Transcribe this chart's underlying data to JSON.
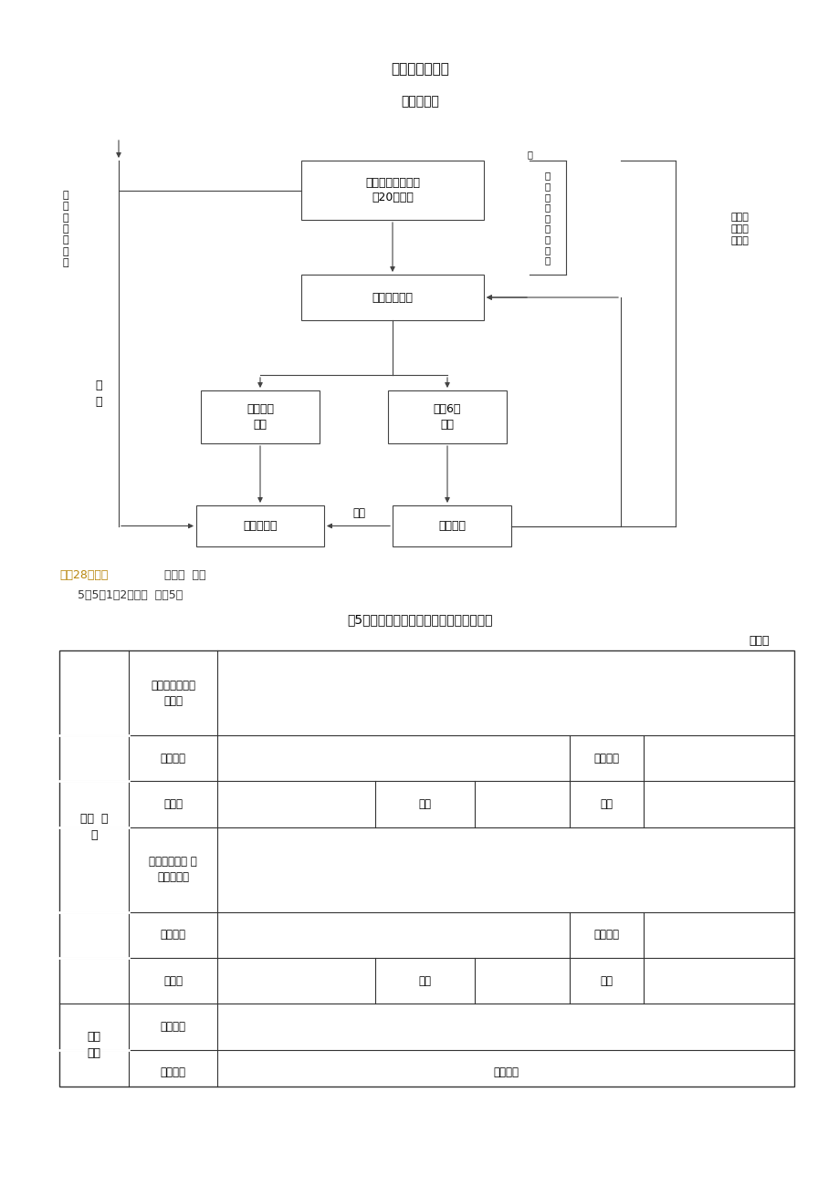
{
  "title1": "检验工作流程图",
  "title2": "检验组进厂",
  "bg_color": "#ffffff",
  "note_color": "#b8860b",
  "note_colored": "龄期28天后开",
  "note_plain": "始疲劳  试验",
  "note_line2": "    5．5．1．2抽样单  见表5。",
  "table_title": "表5预应力混凝土枕产品生产许可证抽样单",
  "table_note": "编号："
}
